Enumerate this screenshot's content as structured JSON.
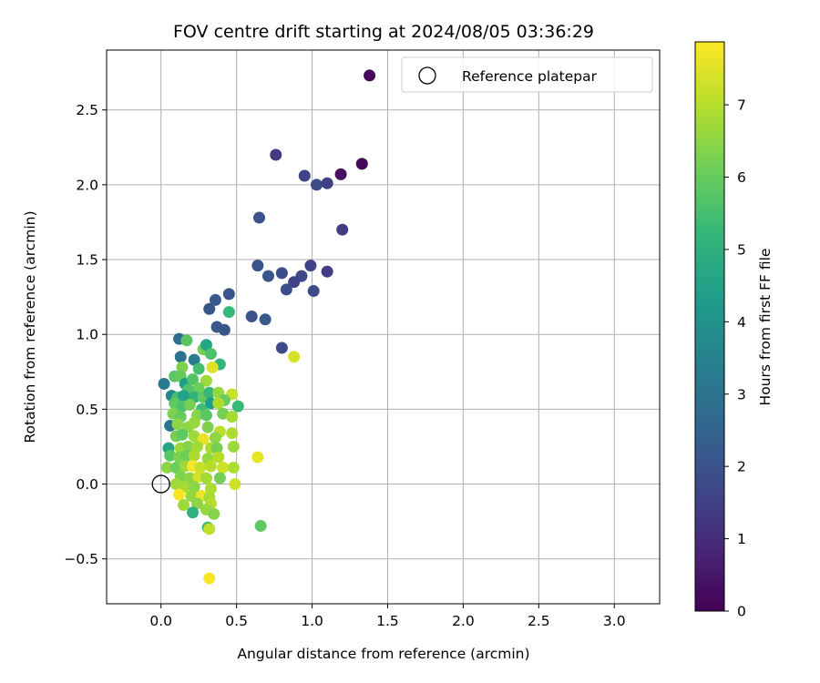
{
  "chart_data": {
    "type": "scatter",
    "title": "FOV centre drift starting at 2024/08/05 03:36:29",
    "xlabel": "Angular distance from reference (arcmin)",
    "ylabel": "Rotation from reference (arcmin)",
    "xlim": [
      -0.36,
      3.3
    ],
    "ylim": [
      -0.8,
      2.9
    ],
    "x_ticks": [
      0.0,
      0.5,
      1.0,
      1.5,
      2.0,
      2.5,
      3.0
    ],
    "x_tick_labels": [
      "0.0",
      "0.5",
      "1.0",
      "1.5",
      "2.0",
      "2.5",
      "3.0"
    ],
    "y_ticks": [
      -0.5,
      0.0,
      0.5,
      1.0,
      1.5,
      2.0,
      2.5
    ],
    "y_tick_labels": [
      "−0.5",
      "0.0",
      "0.5",
      "1.0",
      "1.5",
      "2.0",
      "2.5"
    ],
    "grid": true,
    "legend": {
      "placement": "top-right",
      "entries": [
        {
          "label": "Reference platepar",
          "marker": "open-circle"
        }
      ]
    },
    "reference_point": {
      "x": 0.0,
      "y": 0.0
    },
    "colorbar": {
      "label": "Hours from first FF file",
      "colormap": "viridis",
      "range": [
        0,
        7.87
      ],
      "ticks": [
        0,
        1,
        2,
        3,
        4,
        5,
        6,
        7
      ],
      "tick_labels": [
        "0",
        "1",
        "2",
        "3",
        "4",
        "5",
        "6",
        "7"
      ]
    },
    "points": [
      {
        "x": 1.38,
        "y": 2.73,
        "h": 0.2
      },
      {
        "x": 1.33,
        "y": 2.14,
        "h": 0.15
      },
      {
        "x": 1.19,
        "y": 2.07,
        "h": 0.3
      },
      {
        "x": 0.76,
        "y": 2.2,
        "h": 1.3
      },
      {
        "x": 0.95,
        "y": 2.06,
        "h": 1.6
      },
      {
        "x": 1.03,
        "y": 2.0,
        "h": 1.8
      },
      {
        "x": 1.1,
        "y": 2.01,
        "h": 1.5
      },
      {
        "x": 1.2,
        "y": 1.7,
        "h": 1.4
      },
      {
        "x": 0.65,
        "y": 1.78,
        "h": 2.0
      },
      {
        "x": 0.64,
        "y": 1.46,
        "h": 2.0
      },
      {
        "x": 0.71,
        "y": 1.39,
        "h": 2.1
      },
      {
        "x": 0.8,
        "y": 1.41,
        "h": 1.8
      },
      {
        "x": 0.83,
        "y": 1.3,
        "h": 1.9
      },
      {
        "x": 0.88,
        "y": 1.35,
        "h": 1.6
      },
      {
        "x": 0.93,
        "y": 1.39,
        "h": 1.7
      },
      {
        "x": 0.99,
        "y": 1.46,
        "h": 1.6
      },
      {
        "x": 1.01,
        "y": 1.29,
        "h": 1.8
      },
      {
        "x": 1.1,
        "y": 1.42,
        "h": 1.4
      },
      {
        "x": 0.45,
        "y": 1.27,
        "h": 2.0
      },
      {
        "x": 0.36,
        "y": 1.23,
        "h": 2.2
      },
      {
        "x": 0.32,
        "y": 1.17,
        "h": 2.1
      },
      {
        "x": 0.37,
        "y": 1.05,
        "h": 2.2
      },
      {
        "x": 0.42,
        "y": 1.03,
        "h": 2.1
      },
      {
        "x": 0.6,
        "y": 1.12,
        "h": 2.0
      },
      {
        "x": 0.69,
        "y": 1.1,
        "h": 2.2
      },
      {
        "x": 0.8,
        "y": 0.91,
        "h": 1.8
      },
      {
        "x": 0.45,
        "y": 1.15,
        "h": 5.3
      },
      {
        "x": 0.88,
        "y": 0.85,
        "h": 7.4
      },
      {
        "x": 0.12,
        "y": 0.97,
        "h": 2.8
      },
      {
        "x": 0.17,
        "y": 0.96,
        "h": 5.8
      },
      {
        "x": 0.13,
        "y": 0.85,
        "h": 3.0
      },
      {
        "x": 0.22,
        "y": 0.83,
        "h": 3.3
      },
      {
        "x": 0.28,
        "y": 0.9,
        "h": 6.2
      },
      {
        "x": 0.3,
        "y": 0.93,
        "h": 4.6
      },
      {
        "x": 0.33,
        "y": 0.87,
        "h": 5.6
      },
      {
        "x": 0.39,
        "y": 0.8,
        "h": 5.2
      },
      {
        "x": 0.14,
        "y": 0.78,
        "h": 6.3
      },
      {
        "x": 0.25,
        "y": 0.77,
        "h": 5.5
      },
      {
        "x": 0.34,
        "y": 0.78,
        "h": 7.5
      },
      {
        "x": 0.09,
        "y": 0.72,
        "h": 5.8
      },
      {
        "x": 0.13,
        "y": 0.72,
        "h": 6.0
      },
      {
        "x": 0.02,
        "y": 0.67,
        "h": 3.2
      },
      {
        "x": 0.16,
        "y": 0.67,
        "h": 4.3
      },
      {
        "x": 0.21,
        "y": 0.7,
        "h": 5.7
      },
      {
        "x": 0.3,
        "y": 0.69,
        "h": 6.7
      },
      {
        "x": 0.25,
        "y": 0.64,
        "h": 6.1
      },
      {
        "x": 0.18,
        "y": 0.63,
        "h": 5.7
      },
      {
        "x": 0.07,
        "y": 0.59,
        "h": 3.7
      },
      {
        "x": 0.11,
        "y": 0.58,
        "h": 5.5
      },
      {
        "x": 0.15,
        "y": 0.59,
        "h": 4.5
      },
      {
        "x": 0.22,
        "y": 0.58,
        "h": 5.1
      },
      {
        "x": 0.28,
        "y": 0.58,
        "h": 5.9
      },
      {
        "x": 0.32,
        "y": 0.61,
        "h": 5.3
      },
      {
        "x": 0.38,
        "y": 0.61,
        "h": 6.6
      },
      {
        "x": 0.47,
        "y": 0.6,
        "h": 7.2
      },
      {
        "x": 0.42,
        "y": 0.56,
        "h": 6.0
      },
      {
        "x": 0.51,
        "y": 0.52,
        "h": 5.3
      },
      {
        "x": 0.09,
        "y": 0.54,
        "h": 5.9
      },
      {
        "x": 0.14,
        "y": 0.52,
        "h": 5.6
      },
      {
        "x": 0.19,
        "y": 0.53,
        "h": 6.2
      },
      {
        "x": 0.27,
        "y": 0.5,
        "h": 5.4
      },
      {
        "x": 0.33,
        "y": 0.54,
        "h": 4.4
      },
      {
        "x": 0.38,
        "y": 0.54,
        "h": 6.9
      },
      {
        "x": 0.08,
        "y": 0.47,
        "h": 6.3
      },
      {
        "x": 0.13,
        "y": 0.45,
        "h": 6.0
      },
      {
        "x": 0.24,
        "y": 0.46,
        "h": 6.4
      },
      {
        "x": 0.3,
        "y": 0.46,
        "h": 5.8
      },
      {
        "x": 0.41,
        "y": 0.47,
        "h": 6.2
      },
      {
        "x": 0.47,
        "y": 0.45,
        "h": 6.8
      },
      {
        "x": 0.06,
        "y": 0.39,
        "h": 3.0
      },
      {
        "x": 0.11,
        "y": 0.4,
        "h": 6.5
      },
      {
        "x": 0.18,
        "y": 0.38,
        "h": 6.5
      },
      {
        "x": 0.22,
        "y": 0.41,
        "h": 6.6
      },
      {
        "x": 0.31,
        "y": 0.38,
        "h": 6.3
      },
      {
        "x": 0.39,
        "y": 0.35,
        "h": 7.1
      },
      {
        "x": 0.47,
        "y": 0.34,
        "h": 6.9
      },
      {
        "x": 0.1,
        "y": 0.32,
        "h": 6.2
      },
      {
        "x": 0.14,
        "y": 0.33,
        "h": 5.9
      },
      {
        "x": 0.22,
        "y": 0.32,
        "h": 6.7
      },
      {
        "x": 0.28,
        "y": 0.3,
        "h": 7.6
      },
      {
        "x": 0.36,
        "y": 0.31,
        "h": 6.5
      },
      {
        "x": 0.05,
        "y": 0.24,
        "h": 4.6
      },
      {
        "x": 0.13,
        "y": 0.24,
        "h": 6.7
      },
      {
        "x": 0.18,
        "y": 0.25,
        "h": 6.4
      },
      {
        "x": 0.24,
        "y": 0.25,
        "h": 6.8
      },
      {
        "x": 0.33,
        "y": 0.24,
        "h": 6.9
      },
      {
        "x": 0.37,
        "y": 0.24,
        "h": 6.2
      },
      {
        "x": 0.48,
        "y": 0.25,
        "h": 6.7
      },
      {
        "x": 0.64,
        "y": 0.18,
        "h": 7.6
      },
      {
        "x": 0.06,
        "y": 0.19,
        "h": 5.8
      },
      {
        "x": 0.12,
        "y": 0.18,
        "h": 6.3
      },
      {
        "x": 0.17,
        "y": 0.19,
        "h": 6.1
      },
      {
        "x": 0.22,
        "y": 0.19,
        "h": 6.9
      },
      {
        "x": 0.31,
        "y": 0.17,
        "h": 6.6
      },
      {
        "x": 0.38,
        "y": 0.18,
        "h": 7.0
      },
      {
        "x": 0.04,
        "y": 0.11,
        "h": 6.5
      },
      {
        "x": 0.1,
        "y": 0.11,
        "h": 6.1
      },
      {
        "x": 0.16,
        "y": 0.12,
        "h": 6.7
      },
      {
        "x": 0.21,
        "y": 0.12,
        "h": 7.8
      },
      {
        "x": 0.26,
        "y": 0.11,
        "h": 7.2
      },
      {
        "x": 0.33,
        "y": 0.12,
        "h": 7.0
      },
      {
        "x": 0.41,
        "y": 0.11,
        "h": 7.3
      },
      {
        "x": 0.48,
        "y": 0.11,
        "h": 6.9
      },
      {
        "x": 0.13,
        "y": 0.05,
        "h": 6.3
      },
      {
        "x": 0.19,
        "y": 0.04,
        "h": 6.5
      },
      {
        "x": 0.25,
        "y": 0.05,
        "h": 7.4
      },
      {
        "x": 0.3,
        "y": 0.04,
        "h": 6.8
      },
      {
        "x": 0.39,
        "y": 0.04,
        "h": 6.2
      },
      {
        "x": 0.49,
        "y": 0.0,
        "h": 7.3
      },
      {
        "x": 0.1,
        "y": 0.0,
        "h": 6.7
      },
      {
        "x": 0.15,
        "y": -0.02,
        "h": 6.8
      },
      {
        "x": 0.22,
        "y": -0.02,
        "h": 6.5
      },
      {
        "x": 0.33,
        "y": -0.03,
        "h": 6.9
      },
      {
        "x": 0.12,
        "y": -0.07,
        "h": 7.8
      },
      {
        "x": 0.2,
        "y": -0.08,
        "h": 6.6
      },
      {
        "x": 0.27,
        "y": -0.08,
        "h": 7.7
      },
      {
        "x": 0.32,
        "y": -0.09,
        "h": 6.8
      },
      {
        "x": 0.15,
        "y": -0.14,
        "h": 6.7
      },
      {
        "x": 0.24,
        "y": -0.13,
        "h": 6.5
      },
      {
        "x": 0.33,
        "y": -0.13,
        "h": 7.0
      },
      {
        "x": 0.21,
        "y": -0.19,
        "h": 5.0
      },
      {
        "x": 0.3,
        "y": -0.17,
        "h": 6.6
      },
      {
        "x": 0.35,
        "y": -0.2,
        "h": 6.4
      },
      {
        "x": 0.66,
        "y": -0.28,
        "h": 5.9
      },
      {
        "x": 0.31,
        "y": -0.29,
        "h": 5.3
      },
      {
        "x": 0.32,
        "y": -0.3,
        "h": 7.1
      },
      {
        "x": 0.32,
        "y": -0.63,
        "h": 7.8
      }
    ]
  }
}
